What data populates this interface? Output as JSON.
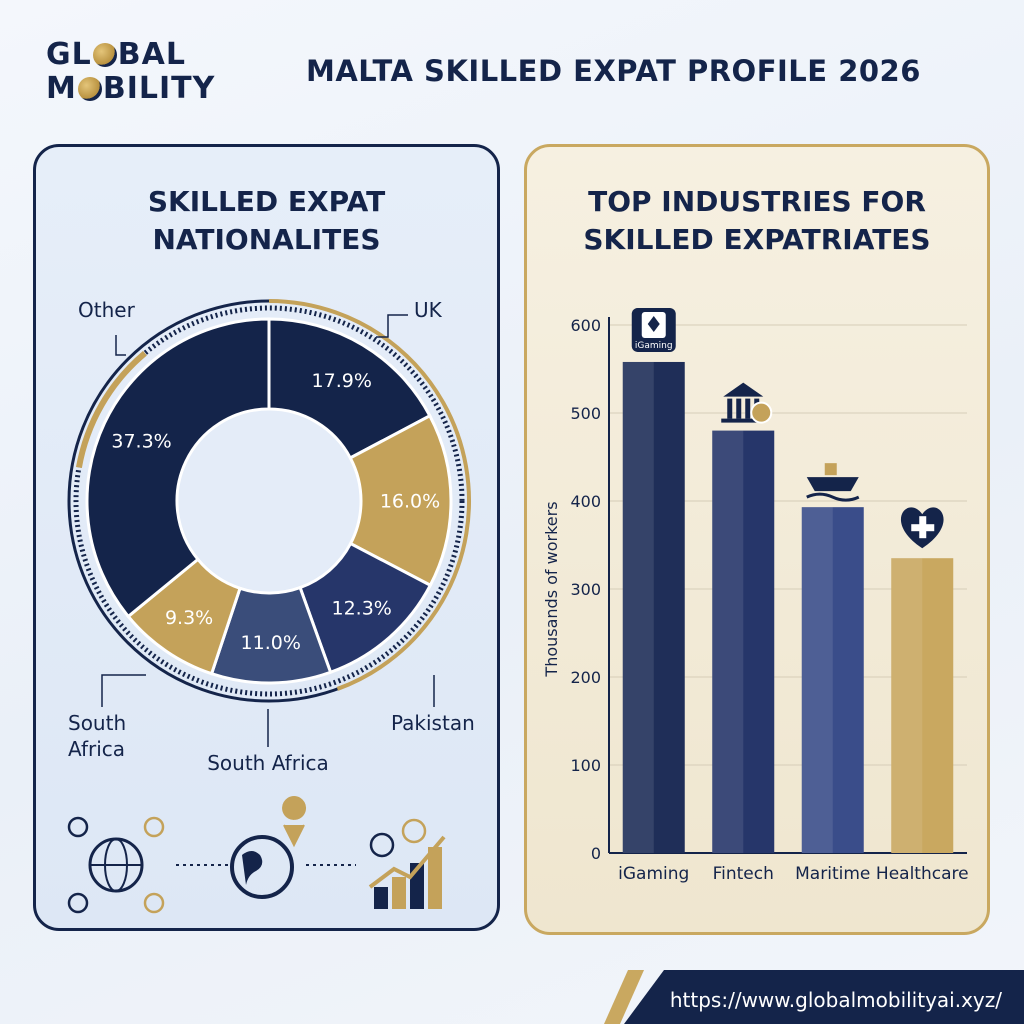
{
  "brand": {
    "line1": "GL",
    "line1b": "BAL",
    "line2a": "M",
    "line2b": "BILITY"
  },
  "title": "MALTA SKILLED EXPAT PROFILE 2026",
  "footer_url": "https://www.globalmobilityai.xyz/",
  "colors": {
    "navy": "#14244a",
    "gold": "#c4a25a",
    "slate": "#3a4d7a",
    "steel": "#4a5e92",
    "light_gold": "#d9bb6c"
  },
  "chart_data": [
    {
      "type": "pie",
      "title": "SKILLED EXPAT NATIONALITES",
      "slices": [
        {
          "label": "UK",
          "value": 17.9,
          "display": "17.9%",
          "color": "#14244a"
        },
        {
          "label": "",
          "value": 16.0,
          "display": "16.0%",
          "color": "#c4a25a"
        },
        {
          "label": "Pakistan",
          "value": 12.3,
          "display": "12.3%",
          "color": "#26366a"
        },
        {
          "label": "South Africa",
          "value": 11.0,
          "display": "11.0%",
          "color": "#3a4d7a"
        },
        {
          "label": "South Africa",
          "value": 9.3,
          "display": "9.3%",
          "color": "#c4a25a"
        },
        {
          "label": "Other",
          "value": 37.3,
          "display": "37.3%",
          "color": "#14244a"
        }
      ]
    },
    {
      "type": "bar",
      "title": "TOP INDUSTRIES FOR SKILLED EXPATRIATES",
      "ylabel": "Thousands of workers",
      "ylim": [
        0,
        600
      ],
      "yticks": [
        "0",
        "100",
        "200",
        "300",
        "400",
        "500",
        "600"
      ],
      "categories": [
        "iGaming",
        "Fintech",
        "Maritime",
        "Healthcare"
      ],
      "values": [
        558,
        480,
        393,
        335
      ],
      "colors": [
        "#1f2e58",
        "#26366a",
        "#3a4d8a",
        "#c9a860"
      ],
      "icons": [
        "cards-icon",
        "bank-icon",
        "ship-icon",
        "heart-medical-icon"
      ],
      "icon_label": "iGaming"
    }
  ]
}
